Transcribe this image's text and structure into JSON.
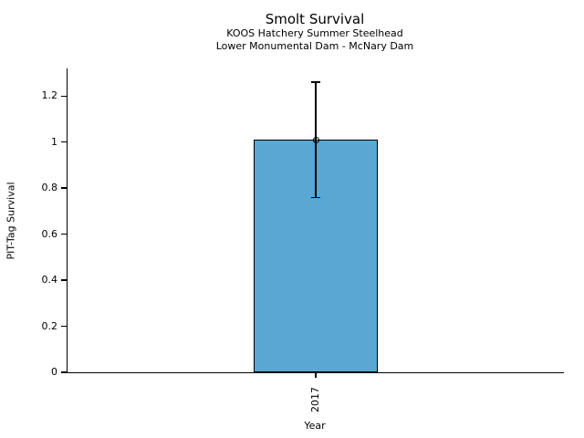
{
  "figure": {
    "background": "#ffffff",
    "text_color": "#000000"
  },
  "chart_data": {
    "type": "bar",
    "title": "Smolt Survival",
    "subtitle_line1": "KOOS Hatchery Summer Steelhead",
    "subtitle_line2": "Lower Monumental Dam - McNary Dam",
    "xlabel": "Year",
    "ylabel": "PIT-Tag Survival",
    "categories": [
      "2017"
    ],
    "values": [
      1.01
    ],
    "error_low": [
      0.76
    ],
    "error_high": [
      1.26
    ],
    "yticks": [
      {
        "value": 0,
        "label": "0"
      },
      {
        "value": 0.2,
        "label": "0.2"
      },
      {
        "value": 0.4,
        "label": "0.4"
      },
      {
        "value": 0.6,
        "label": "0.6"
      },
      {
        "value": 0.8,
        "label": "0.8"
      },
      {
        "value": 1,
        "label": "1"
      },
      {
        "value": 1.2,
        "label": "1.2"
      }
    ],
    "ylim": [
      0,
      1.32
    ],
    "bar_color": "#5AA7D4",
    "bar_edge_color": "#000000",
    "error_color": "#000000",
    "marker": "open-circle",
    "grid": false,
    "legend": "none"
  }
}
